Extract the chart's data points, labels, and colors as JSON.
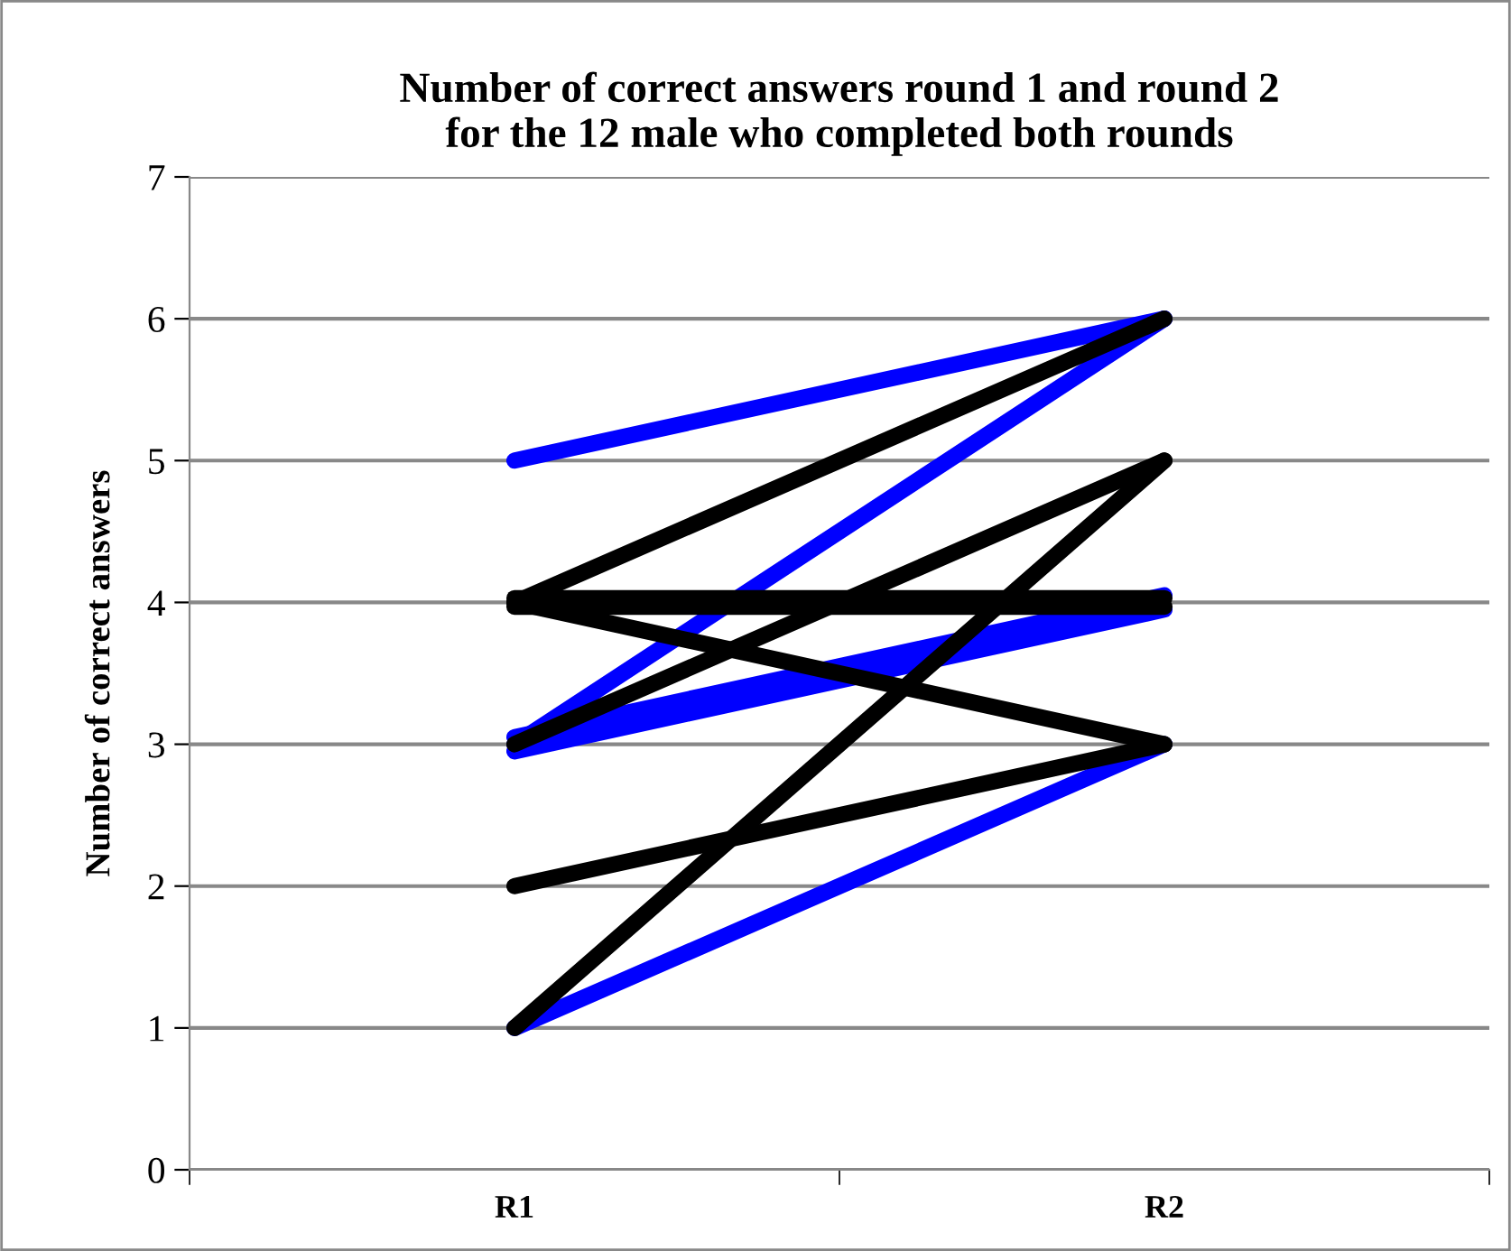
{
  "chart_data": {
    "type": "line",
    "title": "Number of correct answers round 1 and round 2\nfor the 12 male who completed both rounds",
    "ylabel": "Number of correct answers",
    "categories": [
      "R1",
      "R2"
    ],
    "ylim": [
      0,
      7
    ],
    "yticks": [
      0,
      1,
      2,
      3,
      4,
      5,
      6,
      7
    ],
    "grid": "y",
    "marker": "none",
    "line_style": "solid",
    "series": [
      {
        "color": "#0000ff",
        "values": [
          5,
          6
        ]
      },
      {
        "color": "#0000ff",
        "values": [
          3,
          6
        ]
      },
      {
        "color": "#0000ff",
        "values": [
          3.05,
          4.05
        ]
      },
      {
        "color": "#0000ff",
        "values": [
          2.95,
          3.95
        ]
      },
      {
        "color": "#0000ff",
        "values": [
          1,
          3
        ]
      },
      {
        "color": "#000000",
        "values": [
          4,
          6
        ]
      },
      {
        "color": "#000000",
        "values": [
          3,
          5
        ]
      },
      {
        "color": "#000000",
        "values": [
          4.03,
          4.03
        ]
      },
      {
        "color": "#000000",
        "values": [
          3.97,
          3.97
        ]
      },
      {
        "color": "#000000",
        "values": [
          4,
          3
        ]
      },
      {
        "color": "#000000",
        "values": [
          2,
          3
        ]
      },
      {
        "color": "#000000",
        "values": [
          1,
          5
        ]
      }
    ]
  }
}
